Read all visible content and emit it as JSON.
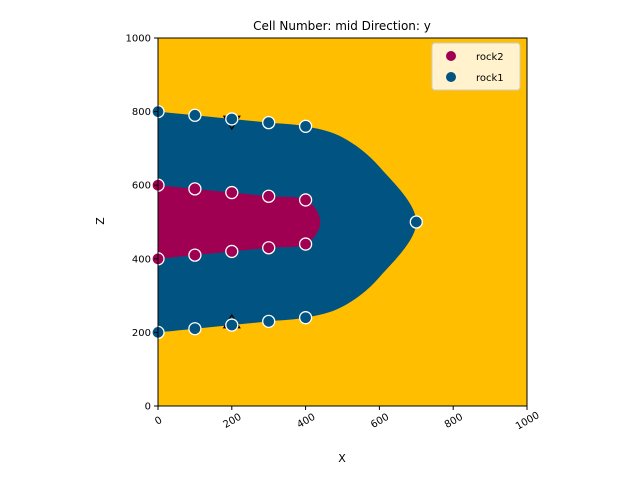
{
  "chart_data": {
    "type": "scatter",
    "title": "Cell Number: mid Direction: y",
    "xlabel": "X",
    "ylabel": "Z",
    "xlim": [
      0,
      1000
    ],
    "ylim": [
      0,
      1000
    ],
    "xticks": [
      "0",
      "200",
      "400",
      "600",
      "800",
      "1000"
    ],
    "yticks": [
      "0",
      "200",
      "400",
      "600",
      "800",
      "1000"
    ],
    "grid": false,
    "legend_position": "top-right",
    "background_color": "#FFBE00",
    "legend": [
      {
        "name": "rock2",
        "color": "#9F0052"
      },
      {
        "name": "rock1",
        "color": "#015482"
      }
    ],
    "series": [
      {
        "name": "rock2",
        "color": "#9F0052",
        "region_boundary": {
          "upper": [
            [
              0,
              600
            ],
            [
              100,
              590
            ],
            [
              200,
              580
            ],
            [
              300,
              570
            ],
            [
              400,
              560
            ],
            [
              440,
              500
            ]
          ],
          "lower": [
            [
              440,
              500
            ],
            [
              400,
              440
            ],
            [
              300,
              430
            ],
            [
              200,
              420
            ],
            [
              100,
              410
            ],
            [
              0,
              400
            ]
          ]
        },
        "points": [
          [
            0,
            600
          ],
          [
            100,
            590
          ],
          [
            200,
            580
          ],
          [
            300,
            570
          ],
          [
            400,
            560
          ],
          [
            0,
            400
          ],
          [
            100,
            410
          ],
          [
            200,
            420
          ],
          [
            300,
            430
          ],
          [
            400,
            440
          ]
        ]
      },
      {
        "name": "rock1",
        "color": "#015482",
        "region_boundary": {
          "upper": [
            [
              0,
              800
            ],
            [
              100,
              790
            ],
            [
              200,
              780
            ],
            [
              300,
              770
            ],
            [
              400,
              760
            ],
            [
              500,
              730
            ],
            [
              600,
              650
            ],
            [
              700,
              500
            ]
          ],
          "lower": [
            [
              700,
              500
            ],
            [
              600,
              350
            ],
            [
              500,
              270
            ],
            [
              400,
              240
            ],
            [
              300,
              230
            ],
            [
              200,
              220
            ],
            [
              100,
              210
            ],
            [
              0,
              200
            ]
          ]
        },
        "points": [
          [
            0,
            800
          ],
          [
            100,
            790
          ],
          [
            200,
            780
          ],
          [
            300,
            770
          ],
          [
            400,
            760
          ],
          [
            700,
            500
          ],
          [
            0,
            200
          ],
          [
            100,
            210
          ],
          [
            200,
            220
          ],
          [
            300,
            230
          ],
          [
            400,
            240
          ]
        ]
      }
    ],
    "orientations": [
      {
        "x": 200,
        "z": 770,
        "shape": "down-triangle"
      },
      {
        "x": 200,
        "z": 230,
        "shape": "up-triangle"
      }
    ]
  }
}
